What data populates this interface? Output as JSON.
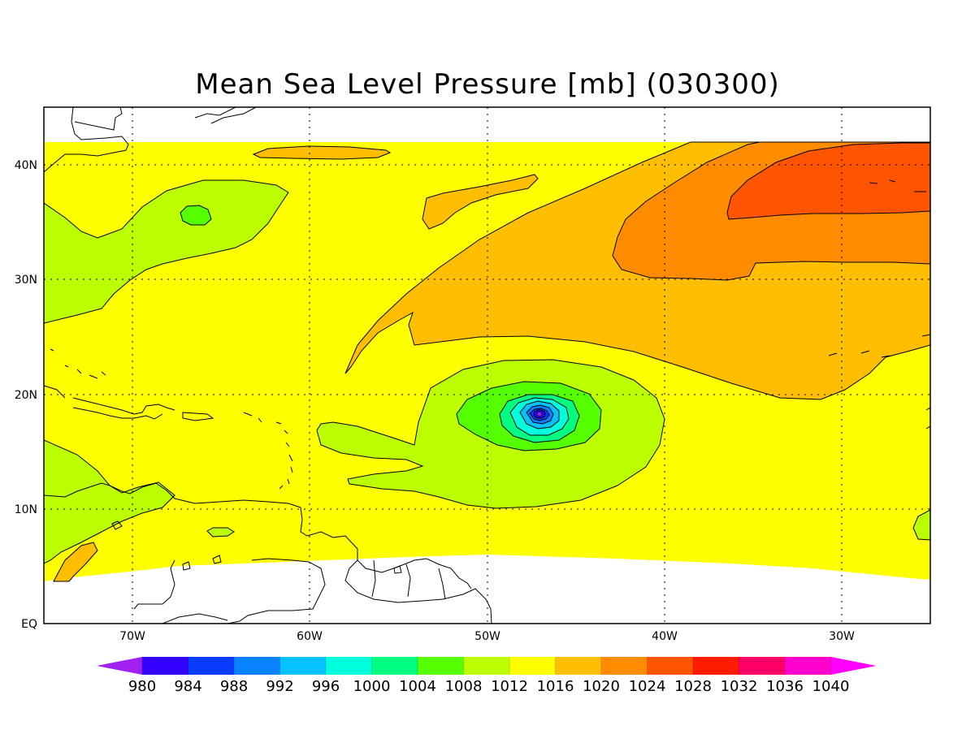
{
  "title": "Mean Sea Level Pressure [mb] (030300)",
  "map": {
    "lon_range": [
      -75,
      -25
    ],
    "lat_range": [
      0,
      45
    ],
    "lon_ticks": [
      {
        "value": -70,
        "label": "70W"
      },
      {
        "value": -60,
        "label": "60W"
      },
      {
        "value": -50,
        "label": "50W"
      },
      {
        "value": -40,
        "label": "40W"
      },
      {
        "value": -30,
        "label": "30W"
      }
    ],
    "lat_ticks": [
      {
        "value": 40,
        "label": "40N"
      },
      {
        "value": 30,
        "label": "30N"
      },
      {
        "value": 20,
        "label": "20N"
      },
      {
        "value": 10,
        "label": "10N"
      },
      {
        "value": 0,
        "label": "EQ"
      }
    ],
    "grid": "dotted",
    "feature": "low-pressure center near 18N 47W"
  },
  "colorbar": {
    "levels": [
      "980",
      "984",
      "988",
      "992",
      "996",
      "1000",
      "1004",
      "1008",
      "1012",
      "1016",
      "1020",
      "1024",
      "1028",
      "1032",
      "1036",
      "1040"
    ],
    "colors": [
      "#a020f0",
      "#3300ff",
      "#0a3cff",
      "#0a82ff",
      "#05c2ff",
      "#00ffdc",
      "#00ff80",
      "#55ff00",
      "#bbff00",
      "#ffff00",
      "#ffbf00",
      "#ff8c00",
      "#ff5500",
      "#ff1c00",
      "#ff0066",
      "#ff00cc",
      "#ff00ff"
    ]
  }
}
